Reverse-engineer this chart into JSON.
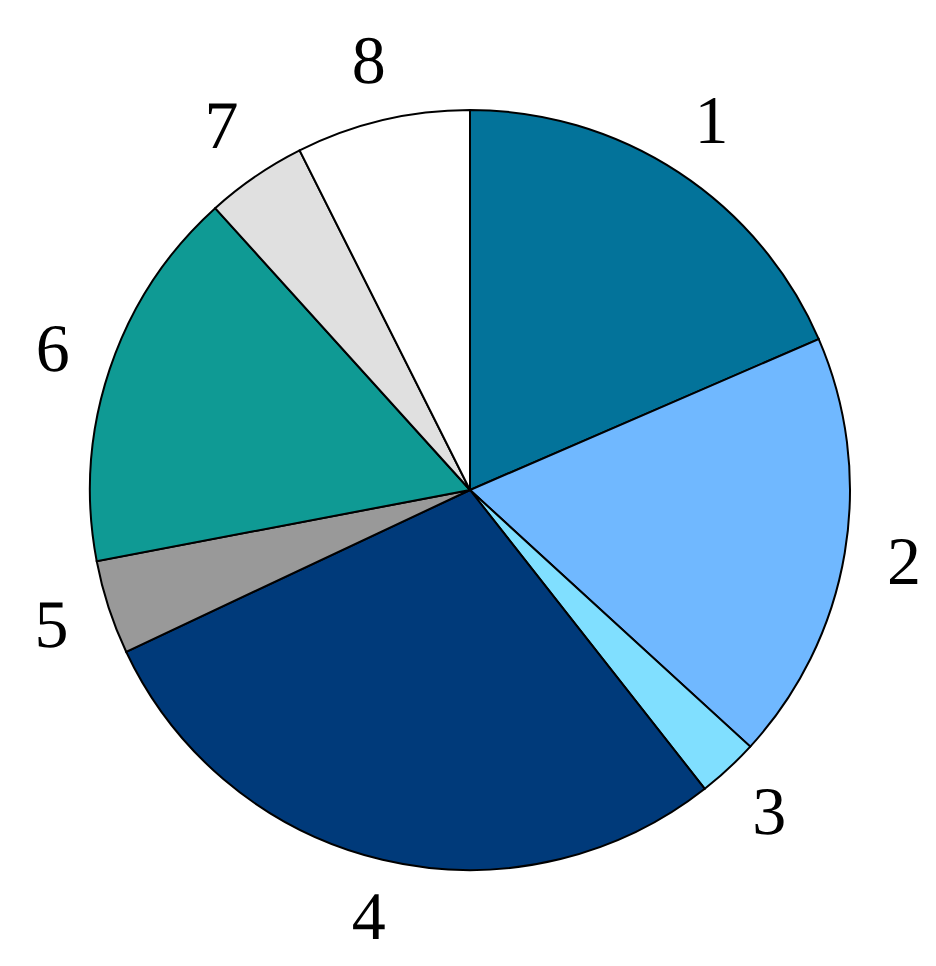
{
  "chart_data": {
    "type": "pie",
    "categories": [
      "1",
      "2",
      "3",
      "4",
      "5",
      "6",
      "7",
      "8"
    ],
    "values": [
      18.5,
      18.3,
      2.6,
      28.6,
      4.0,
      16.3,
      4.3,
      7.4
    ],
    "colors": [
      "#03739a",
      "#70b8ff",
      "#80dfff",
      "#003a7a",
      "#999999",
      "#0f9a94",
      "#e0e0e0",
      "#ffffff"
    ]
  }
}
